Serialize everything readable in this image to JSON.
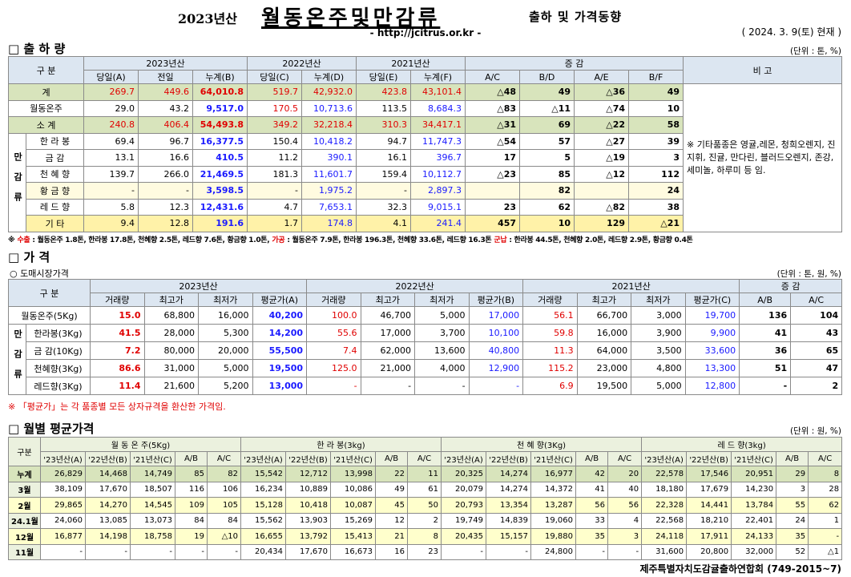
{
  "header": {
    "year": "2023년산",
    "title": "월동온주및만감류",
    "subtitle": "출하 및 가격동향",
    "url": "- http://jcitrus.or.kr -",
    "date": "( 2024. 3. 9(토) 현재 )"
  },
  "shipment": {
    "heading": "□ 출 하 량",
    "unit": "(단위 : 톤, %)",
    "header_groups": [
      "구 분",
      "2023년산",
      "2022년산",
      "2021년산",
      "증 감",
      "비 고"
    ],
    "columns": [
      "당일(A)",
      "전일",
      "누계(B)",
      "당일(C)",
      "누계(D)",
      "당일(E)",
      "누계(F)",
      "A/C",
      "B/D",
      "A/E",
      "B/F"
    ],
    "group_label": "만감류",
    "rows": [
      {
        "label": "계",
        "cells": [
          "269.7",
          "449.6",
          "64,010.8",
          "519.7",
          "42,932.0",
          "423.8",
          "43,101.4",
          "△48",
          "49",
          "△36",
          "49"
        ]
      },
      {
        "label": "월동온주",
        "cells": [
          "29.0",
          "43.2",
          "9,517.0",
          "170.5",
          "10,713.6",
          "113.5",
          "8,684.3",
          "△83",
          "△11",
          "△74",
          "10"
        ]
      },
      {
        "label": "소 계",
        "cells": [
          "240.8",
          "406.4",
          "54,493.8",
          "349.2",
          "32,218.4",
          "310.3",
          "34,417.1",
          "△31",
          "69",
          "△22",
          "58"
        ]
      },
      {
        "label": "한 라 봉",
        "cells": [
          "69.4",
          "96.7",
          "16,377.5",
          "150.4",
          "10,418.2",
          "94.7",
          "11,747.3",
          "△54",
          "57",
          "△27",
          "39"
        ]
      },
      {
        "label": "금 감",
        "cells": [
          "13.1",
          "16.6",
          "410.5",
          "11.2",
          "390.1",
          "16.1",
          "396.7",
          "17",
          "5",
          "△19",
          "3"
        ]
      },
      {
        "label": "천 혜 향",
        "cells": [
          "139.7",
          "266.0",
          "21,469.5",
          "181.3",
          "11,601.7",
          "159.4",
          "10,112.7",
          "△23",
          "85",
          "△12",
          "112"
        ]
      },
      {
        "label": "황 금 향",
        "cells": [
          "-",
          "-",
          "3,598.5",
          "-",
          "1,975.2",
          "-",
          "2,897.3",
          null,
          "82",
          null,
          "24"
        ]
      },
      {
        "label": "레 드 향",
        "cells": [
          "5.8",
          "12.3",
          "12,431.6",
          "4.7",
          "7,653.1",
          "32.3",
          "9,015.1",
          "23",
          "62",
          "△82",
          "38"
        ]
      },
      {
        "label": "기 타",
        "cells": [
          "9.4",
          "12.8",
          "191.6",
          "1.7",
          "174.8",
          "4.1",
          "241.4",
          "457",
          "10",
          "129",
          "△21"
        ]
      }
    ],
    "remark": "※ 기타품종은 영귤,레몬, 청희오렌지, 진지휘, 진귤, 만다린, 블러드오렌지, 존강,세미놀, 하루미 등 임.",
    "note": [
      "※",
      "수출",
      ": 월동온주 1.8톤, 한라봉 17.8톤, 천혜향 2.5톤, 레드향 7.6톤, 황금향 1.0톤,",
      "가공",
      ": 월동온주 7.9톤, 한라봉 196.3톤, 천혜향 33.6톤, 레드향 16.3톤",
      "군납",
      ": 한라봉 44.5톤, 천혜향 2.0톤, 레드향 2.9톤, 황금향 0.4톤"
    ]
  },
  "price": {
    "heading": "□ 가 격",
    "subheading": "○ 도매시장가격",
    "unit": "(단위 : 톤, 원, %)",
    "header_groups": [
      "구 분",
      "2023년산",
      "2022년산",
      "2021년산",
      "증 감"
    ],
    "columns": [
      "거래량",
      "최고가",
      "최저가",
      "평균가(A)",
      "거래량",
      "최고가",
      "최저가",
      "평균가(B)",
      "거래량",
      "최고가",
      "최저가",
      "평균가(C)",
      "A/B",
      "A/C"
    ],
    "group_label": "만감류",
    "rows": [
      {
        "label": "월동온주(5Kg)",
        "cells": [
          "15.0",
          "68,800",
          "16,000",
          "40,200",
          "100.0",
          "46,700",
          "5,000",
          "17,000",
          "56.1",
          "66,700",
          "3,000",
          "19,700",
          "136",
          "104"
        ]
      },
      {
        "label": "한라봉(3Kg)",
        "cells": [
          "41.5",
          "28,000",
          "5,300",
          "14,200",
          "55.6",
          "17,000",
          "3,700",
          "10,100",
          "59.8",
          "16,000",
          "3,900",
          "9,900",
          "41",
          "43"
        ]
      },
      {
        "label": "금 감(10Kg)",
        "cells": [
          "7.2",
          "80,000",
          "20,000",
          "55,500",
          "7.4",
          "62,000",
          "13,600",
          "40,800",
          "11.3",
          "64,000",
          "3,500",
          "33,600",
          "36",
          "65"
        ]
      },
      {
        "label": "천혜향(3Kg)",
        "cells": [
          "86.6",
          "31,000",
          "5,000",
          "19,500",
          "125.0",
          "21,000",
          "4,000",
          "12,900",
          "115.2",
          "23,000",
          "4,800",
          "13,300",
          "51",
          "47"
        ]
      },
      {
        "label": "레드향(3Kg)",
        "cells": [
          "11.4",
          "21,600",
          "5,200",
          "13,000",
          "-",
          "-",
          "-",
          "-",
          "6.9",
          "19,500",
          "5,000",
          "12,800",
          "-",
          "2"
        ]
      }
    ],
    "note": "※ 「평균가」는 각 품종별 모든 상자규격을 환산한 가격임."
  },
  "monthly": {
    "heading": "□ 월별 평균가격",
    "unit": "(단위 : 원, %)",
    "label_header": "구분",
    "groups": [
      {
        "name": "월 동 온 주(5Kg)",
        "columns": [
          "'23년산(A)",
          "'22년산(B)",
          "'21년산(C)",
          "A/B",
          "A/C"
        ]
      },
      {
        "name": "한 라 봉(3kg)",
        "columns": [
          "'23년산(A)",
          "'22년산(B)",
          "'21년산(C)",
          "A/B",
          "A/C"
        ]
      },
      {
        "name": "천 혜 향(3Kg)",
        "columns": [
          "'23년산(A)",
          "'22년산(B)",
          "'21년산(C)",
          "A/B",
          "A/C"
        ]
      },
      {
        "name": "레 드 향(3kg)",
        "columns": [
          "'23년산(A)",
          "'22년산(B)",
          "'21년산(C)",
          "A/B",
          "A/C"
        ]
      }
    ],
    "rows": [
      {
        "label": "누계",
        "cells": [
          "26,829",
          "14,468",
          "14,749",
          "85",
          "82",
          "15,542",
          "12,712",
          "13,998",
          "22",
          "11",
          "20,325",
          "14,274",
          "16,977",
          "42",
          "20",
          "22,578",
          "17,546",
          "20,951",
          "29",
          "8"
        ]
      },
      {
        "label": "3월",
        "cells": [
          "38,109",
          "17,670",
          "18,507",
          "116",
          "106",
          "16,234",
          "10,889",
          "10,086",
          "49",
          "61",
          "20,079",
          "14,274",
          "14,372",
          "41",
          "40",
          "18,180",
          "17,679",
          "14,230",
          "3",
          "28"
        ]
      },
      {
        "label": "2월",
        "cells": [
          "29,865",
          "14,270",
          "14,545",
          "109",
          "105",
          "15,128",
          "10,418",
          "10,087",
          "45",
          "50",
          "20,793",
          "13,354",
          "13,287",
          "56",
          "56",
          "22,328",
          "14,441",
          "13,784",
          "55",
          "62"
        ]
      },
      {
        "label": "24.1월",
        "cells": [
          "24,060",
          "13,085",
          "13,073",
          "84",
          "84",
          "15,562",
          "13,903",
          "15,269",
          "12",
          "2",
          "19,749",
          "14,839",
          "19,060",
          "33",
          "4",
          "22,568",
          "18,210",
          "22,401",
          "24",
          "1"
        ]
      },
      {
        "label": "12월",
        "cells": [
          "16,877",
          "14,198",
          "18,758",
          "19",
          "△10",
          "16,655",
          "13,792",
          "15,413",
          "21",
          "8",
          "20,435",
          "15,157",
          "19,880",
          "35",
          "3",
          "24,118",
          "17,911",
          "24,133",
          "35",
          "-"
        ]
      },
      {
        "label": "11월",
        "cells": [
          "-",
          "-",
          "-",
          "-",
          "-",
          "20,434",
          "17,670",
          "16,673",
          "16",
          "23",
          "-",
          "-",
          "24,800",
          "-",
          "-",
          "31,600",
          "20,800",
          "32,000",
          "52",
          "△1"
        ]
      }
    ]
  },
  "footer": "제주특별자치도감귤출하연합회 (749-2015~7)"
}
